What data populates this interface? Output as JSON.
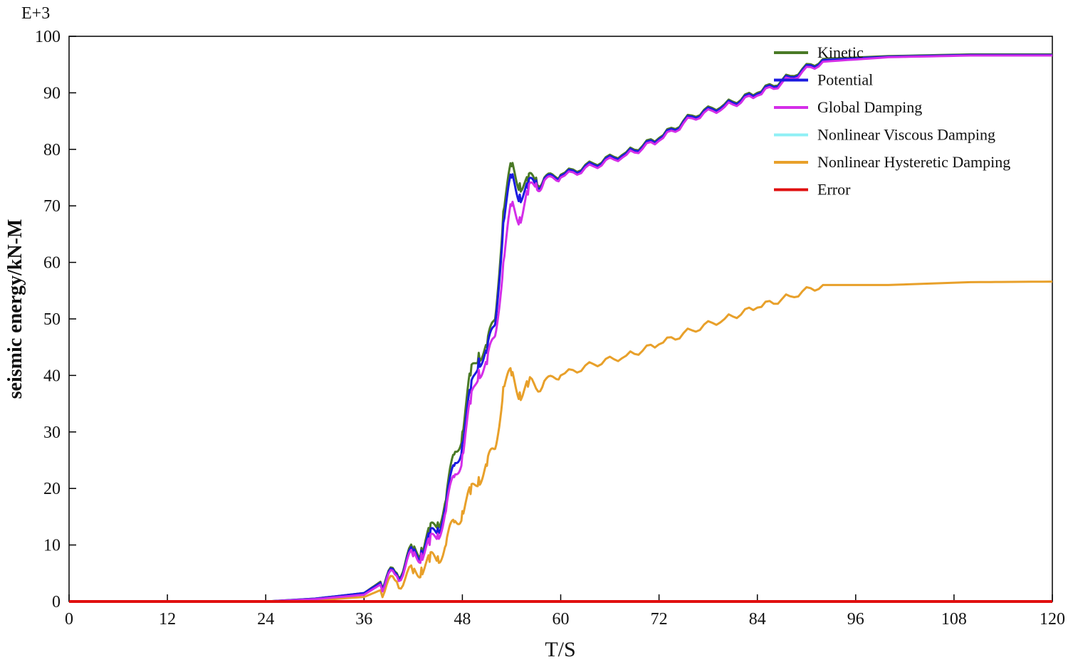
{
  "chart_data": {
    "type": "line",
    "title": "",
    "xlabel": "T/S",
    "ylabel": "seismic energy/kN-M",
    "y_multiplier": "E+3",
    "xlim": [
      0,
      120
    ],
    "ylim": [
      0,
      100
    ],
    "x_ticks": [
      "0",
      "12",
      "24",
      "36",
      "48",
      "60",
      "72",
      "84",
      "96",
      "108",
      "120"
    ],
    "y_ticks": [
      "0",
      "10",
      "20",
      "30",
      "40",
      "50",
      "60",
      "70",
      "80",
      "90",
      "100"
    ],
    "grid": false,
    "legend_position": "top-right",
    "series": [
      {
        "name": "Kinetic",
        "color": "#4a7a26",
        "x": [
          0,
          24,
          30,
          36,
          38,
          40,
          42,
          43,
          44,
          45,
          46,
          47,
          48,
          49,
          50,
          51,
          52,
          53,
          54,
          55,
          56,
          57,
          58,
          60,
          64,
          68,
          72,
          76,
          80,
          84,
          88,
          92,
          100,
          110,
          120
        ],
        "y": [
          0,
          0,
          0.5,
          1.5,
          3.5,
          5,
          9,
          9.5,
          12,
          14,
          18,
          26,
          30,
          40,
          44,
          45,
          50,
          69,
          77,
          74,
          74,
          75,
          75,
          75.5,
          77.5,
          79.5,
          82,
          86,
          88,
          90,
          93,
          96,
          96.5,
          96.8,
          96.8
        ]
      },
      {
        "name": "Potential",
        "color": "#1a1ae0",
        "x": [
          0,
          24,
          30,
          36,
          38,
          40,
          42,
          43,
          44,
          45,
          46,
          47,
          48,
          49,
          50,
          51,
          52,
          53,
          54,
          55,
          56,
          57,
          58,
          60,
          64,
          68,
          72,
          76,
          80,
          84,
          88,
          92,
          100,
          110,
          120
        ],
        "y": [
          0,
          0,
          0.5,
          1.5,
          3.3,
          4.8,
          8.5,
          9,
          11,
          13,
          17,
          24,
          28,
          37,
          43,
          44,
          49,
          67,
          75,
          72,
          73,
          74.5,
          74.8,
          75.3,
          77.3,
          79.3,
          81.8,
          85.8,
          87.8,
          89.8,
          92.8,
          95.8,
          96.4,
          96.7,
          96.7
        ]
      },
      {
        "name": "Global Damping",
        "color": "#d42ee8",
        "x": [
          0,
          24,
          30,
          36,
          38,
          40,
          42,
          43,
          44,
          45,
          46,
          47,
          48,
          49,
          50,
          51,
          52,
          53,
          54,
          55,
          56,
          57,
          58,
          60,
          64,
          68,
          72,
          76,
          80,
          84,
          88,
          92,
          100,
          110,
          120
        ],
        "y": [
          0,
          0,
          0.4,
          1.2,
          3,
          4.5,
          8,
          8.5,
          10,
          12,
          16,
          22,
          26,
          35,
          41,
          42,
          47,
          60,
          70,
          68,
          72,
          74,
          74.5,
          75,
          77,
          79,
          81.5,
          85.5,
          87.5,
          89.5,
          92.5,
          95.5,
          96.3,
          96.6,
          96.6
        ]
      },
      {
        "name": "Nonlinear Viscous Damping",
        "color": "#8ff0f5",
        "x": [
          0,
          120
        ],
        "y": [
          0,
          0
        ]
      },
      {
        "name": "Nonlinear Hysteretic Damping",
        "color": "#e8a02a",
        "x": [
          0,
          24,
          30,
          36,
          38,
          40,
          42,
          43,
          44,
          45,
          46,
          47,
          48,
          49,
          50,
          51,
          52,
          53,
          54,
          55,
          56,
          58,
          60,
          64,
          68,
          72,
          76,
          80,
          84,
          88,
          92,
          100,
          110,
          120
        ],
        "y": [
          0,
          0,
          0.2,
          0.8,
          2,
          3.5,
          5,
          6,
          7,
          8,
          10,
          14,
          16,
          19,
          22,
          24,
          27,
          38,
          40,
          37,
          38,
          39,
          40,
          42,
          43.5,
          45.5,
          48,
          50,
          52,
          54,
          56,
          56,
          56.5,
          56.6
        ]
      },
      {
        "name": "Error",
        "color": "#e01010",
        "x": [
          0,
          120
        ],
        "y": [
          0,
          0
        ]
      }
    ]
  }
}
